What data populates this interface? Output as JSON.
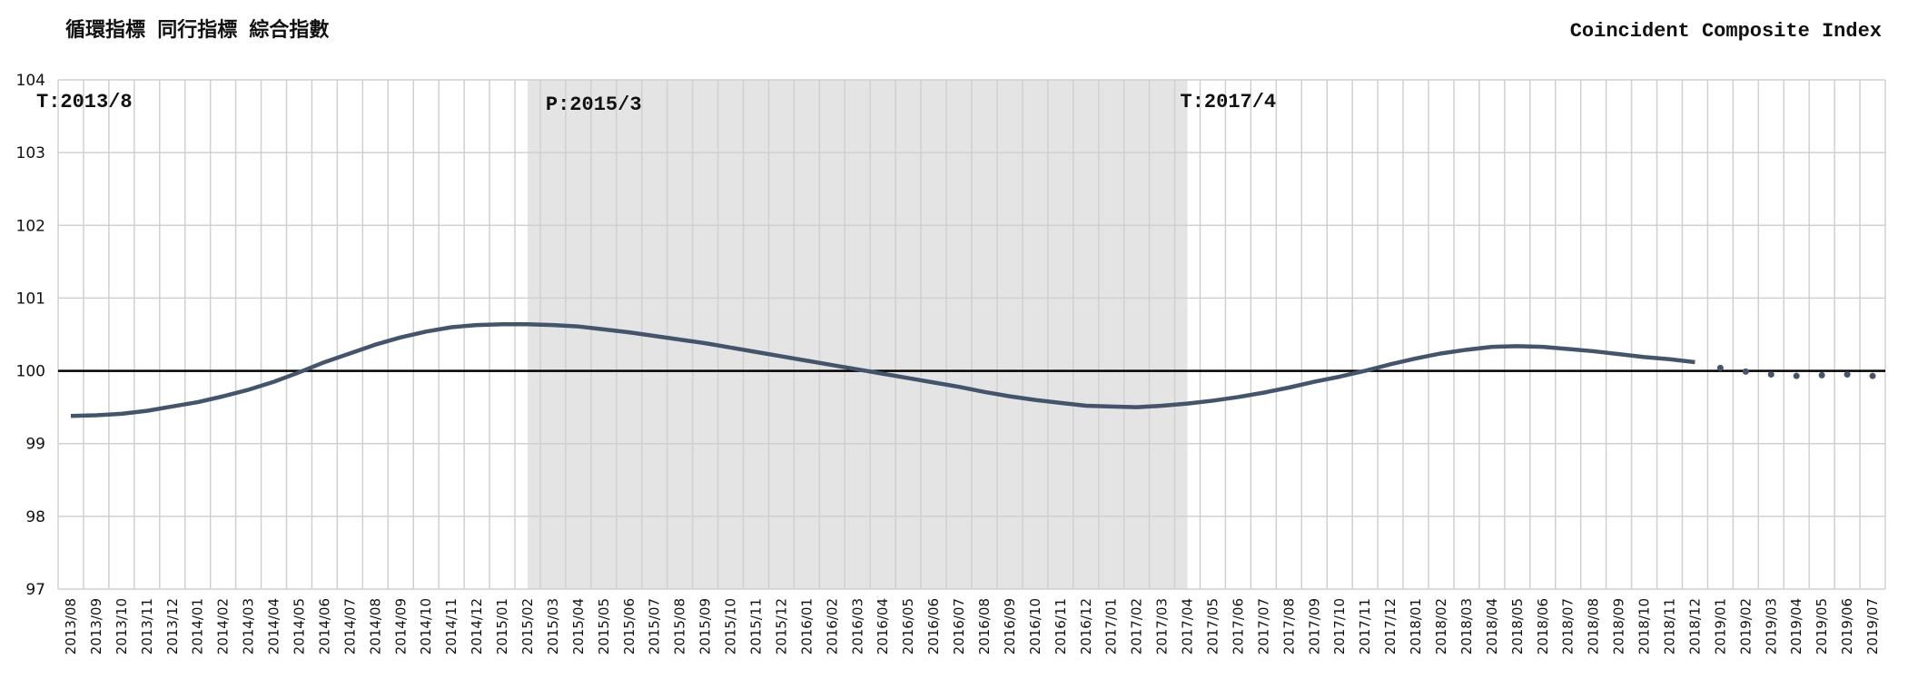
{
  "chart_data": {
    "type": "line",
    "title": "循環指標 同行指標 綜合指數",
    "subtitle": "Coincident Composite Index",
    "categories": [
      "2013/08",
      "2013/09",
      "2013/10",
      "2013/11",
      "2013/12",
      "2014/01",
      "2014/02",
      "2014/03",
      "2014/04",
      "2014/05",
      "2014/06",
      "2014/07",
      "2014/08",
      "2014/09",
      "2014/10",
      "2014/11",
      "2014/12",
      "2015/01",
      "2015/02",
      "2015/03",
      "2015/04",
      "2015/05",
      "2015/06",
      "2015/07",
      "2015/08",
      "2015/09",
      "2015/10",
      "2015/11",
      "2015/12",
      "2016/01",
      "2016/02",
      "2016/03",
      "2016/04",
      "2016/05",
      "2016/06",
      "2016/07",
      "2016/08",
      "2016/09",
      "2016/10",
      "2016/11",
      "2016/12",
      "2017/01",
      "2017/02",
      "2017/03",
      "2017/04",
      "2017/05",
      "2017/06",
      "2017/07",
      "2017/08",
      "2017/09",
      "2017/10",
      "2017/11",
      "2017/12",
      "2018/01",
      "2018/02",
      "2018/03",
      "2018/04",
      "2018/05",
      "2018/06",
      "2018/07",
      "2018/08",
      "2018/09",
      "2018/10",
      "2018/11",
      "2018/12",
      "2019/01",
      "2019/02",
      "2019/03",
      "2019/04",
      "2019/05",
      "2019/06",
      "2019/07"
    ],
    "series": [
      {
        "color": "#44546a",
        "mode": "line",
        "values": [
          99.38,
          99.39,
          99.41,
          99.45,
          99.51,
          99.57,
          99.65,
          99.74,
          99.85,
          99.98,
          100.12,
          100.24,
          100.36,
          100.46,
          100.54,
          100.6,
          100.63,
          100.64,
          100.64,
          100.63,
          100.61,
          100.57,
          100.53,
          100.48,
          100.43,
          100.38,
          100.32,
          100.26,
          100.2,
          100.14,
          100.08,
          100.02,
          99.96,
          99.9,
          99.84,
          99.78,
          99.71,
          99.65,
          99.6,
          99.56,
          99.52,
          99.51,
          99.5,
          99.52,
          99.55,
          99.59,
          99.64,
          99.7,
          99.77,
          99.85,
          99.92,
          100.0,
          100.09,
          100.17,
          100.24,
          100.29,
          100.33,
          100.34,
          100.33,
          100.3,
          100.27,
          100.23,
          100.19,
          100.16,
          100.12,
          null,
          null,
          null,
          null,
          null,
          null,
          null
        ]
      },
      {
        "color": "#44546a",
        "mode": "markers",
        "values": [
          null,
          null,
          null,
          null,
          null,
          null,
          null,
          null,
          null,
          null,
          null,
          null,
          null,
          null,
          null,
          null,
          null,
          null,
          null,
          null,
          null,
          null,
          null,
          null,
          null,
          null,
          null,
          null,
          null,
          null,
          null,
          null,
          null,
          null,
          null,
          null,
          null,
          null,
          null,
          null,
          null,
          null,
          null,
          null,
          null,
          null,
          null,
          null,
          null,
          null,
          null,
          null,
          null,
          null,
          null,
          null,
          null,
          null,
          null,
          null,
          null,
          null,
          null,
          null,
          null,
          100.04,
          99.99,
          99.95,
          99.93,
          99.94,
          99.95,
          99.93
        ]
      }
    ],
    "annotations": [
      {
        "text": "T:2013/8",
        "x": "2013/08"
      },
      {
        "text": "P:2015/3",
        "x": "2015/03"
      },
      {
        "text": "T:2017/4",
        "x": "2017/04"
      }
    ],
    "shade": {
      "from": "2015/03",
      "to": "2017/04",
      "color": "#e4e4e4"
    },
    "hline": 100,
    "ylim": [
      97,
      104
    ],
    "yticks": [
      97,
      98,
      99,
      100,
      101,
      102,
      103,
      104
    ],
    "grid": true
  }
}
